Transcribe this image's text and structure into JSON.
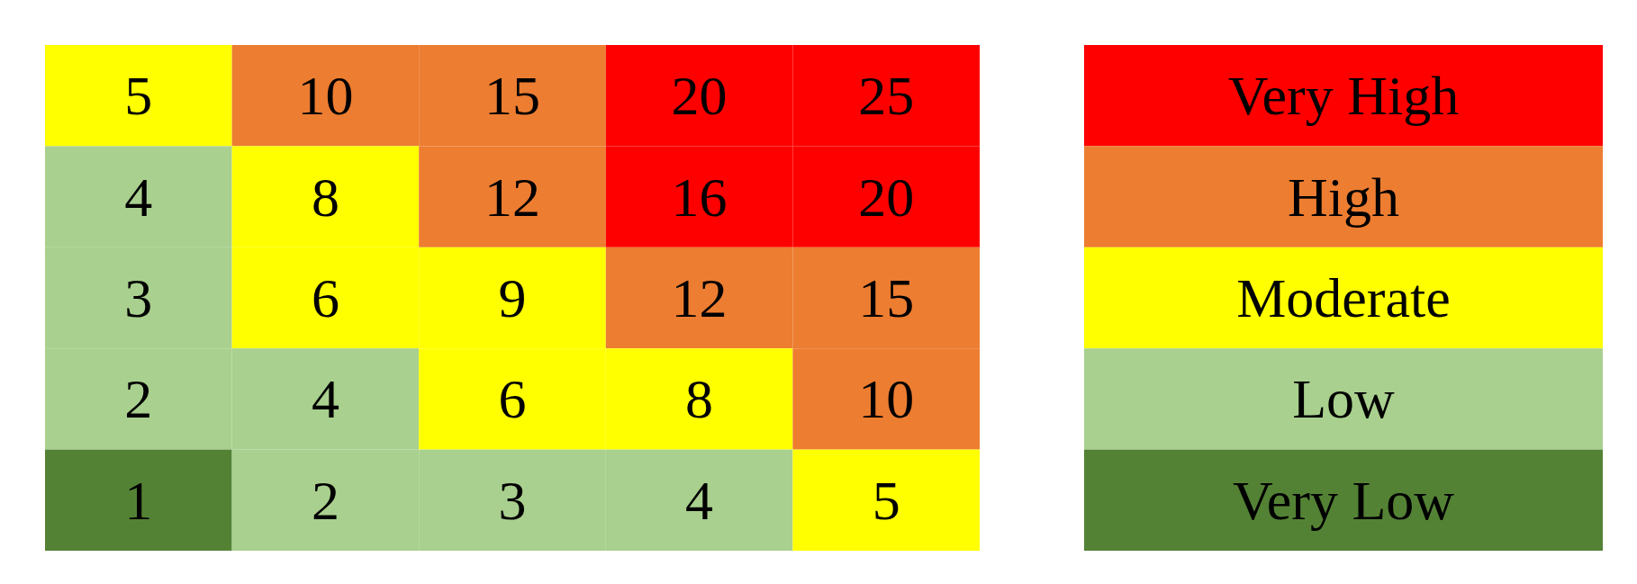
{
  "chart_data": [
    {
      "type": "heatmap",
      "categories": [
        null,
        null,
        null,
        null,
        null
      ],
      "y_categories": [
        null,
        null,
        null,
        null,
        null
      ],
      "cells": [
        [
          5,
          10,
          15,
          20,
          25
        ],
        [
          4,
          8,
          12,
          16,
          20
        ],
        [
          3,
          6,
          9,
          12,
          15
        ],
        [
          2,
          4,
          6,
          8,
          10
        ],
        [
          1,
          2,
          3,
          4,
          5
        ]
      ],
      "colors": [
        [
          "#ffff00",
          "#ed7d31",
          "#ed7d31",
          "#ff0000",
          "#ff0000"
        ],
        [
          "#a9d08e",
          "#ffff00",
          "#ed7d31",
          "#ff0000",
          "#ff0000"
        ],
        [
          "#a9d08e",
          "#ffff00",
          "#ffff00",
          "#ed7d31",
          "#ed7d31"
        ],
        [
          "#a9d08e",
          "#a9d08e",
          "#ffff00",
          "#ffff00",
          "#ed7d31"
        ],
        [
          "#548235",
          "#a9d08e",
          "#a9d08e",
          "#a9d08e",
          "#ffff00"
        ]
      ],
      "data_labels": true
    },
    {
      "type": "other",
      "categories": [
        "Very High",
        "High",
        "Moderate",
        "Low",
        "Very Low"
      ],
      "colors": [
        "#ff0000",
        "#ed7d31",
        "#ffff00",
        "#a9d08e",
        "#548235"
      ]
    }
  ]
}
